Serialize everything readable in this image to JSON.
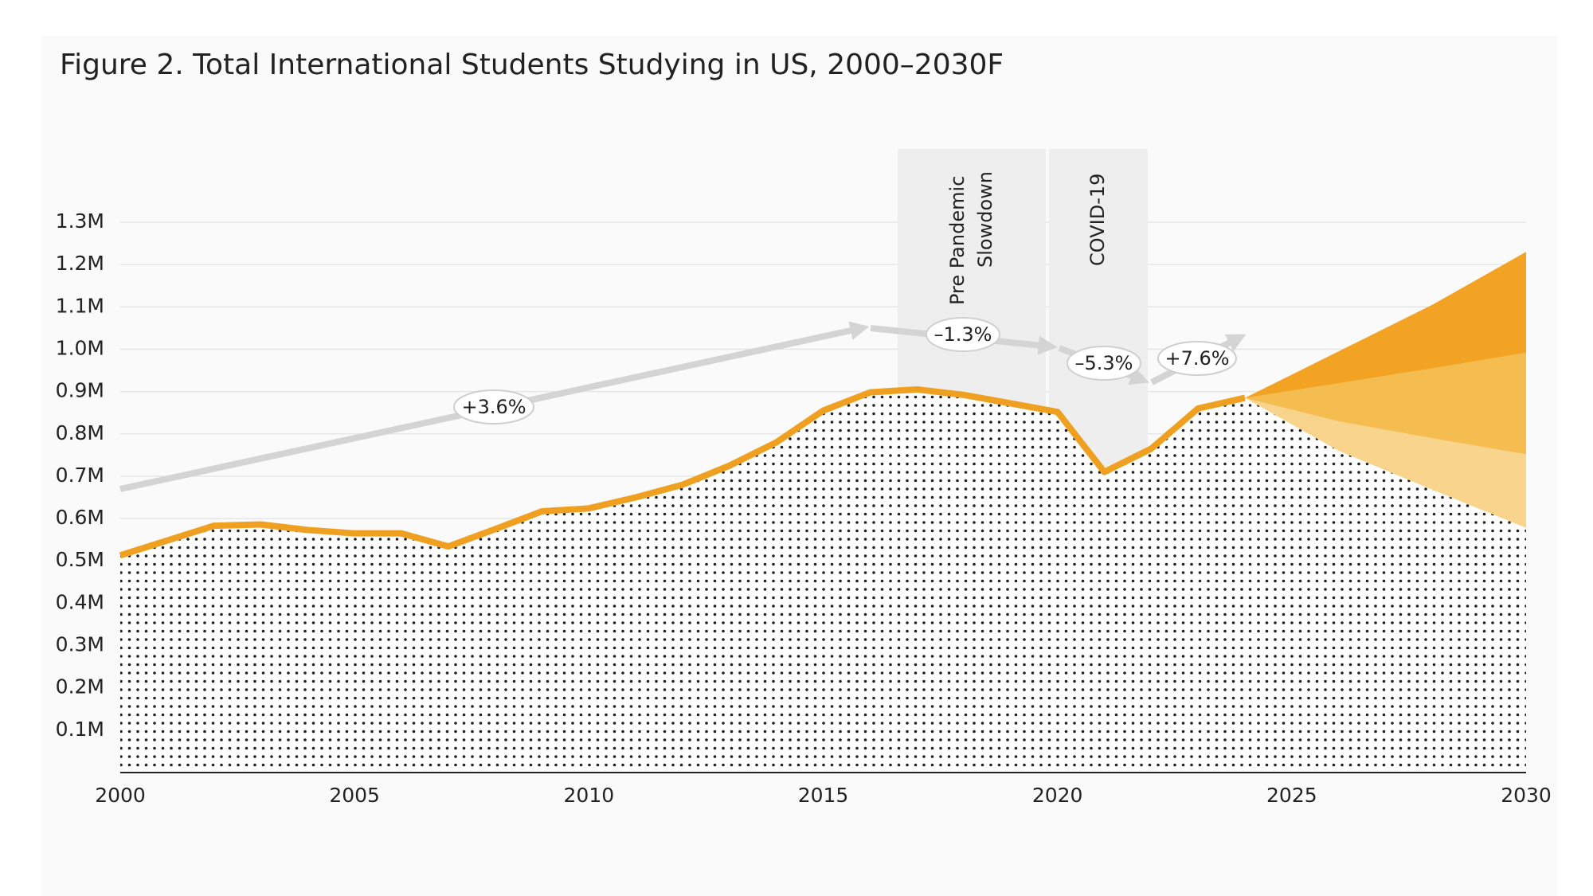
{
  "chart_data": {
    "type": "area",
    "title": "Figure 2. Total International Students Studying in US, 2000–2030F",
    "x": [
      2000,
      2001,
      2002,
      2003,
      2004,
      2005,
      2006,
      2007,
      2008,
      2009,
      2010,
      2011,
      2012,
      2013,
      2014,
      2015,
      2016,
      2017,
      2018,
      2019,
      2020,
      2021,
      2022,
      2023,
      2024
    ],
    "series": [
      {
        "color": "#f0a020",
        "values": [
          513000,
          548000,
          583000,
          586000,
          573000,
          565000,
          565000,
          534000,
          575000,
          617000,
          624000,
          650000,
          680000,
          725000,
          780000,
          855000,
          898000,
          905000,
          892000,
          872000,
          852000,
          710000,
          765000,
          860000,
          885000
        ]
      }
    ],
    "forecast": {
      "x": [
        2024,
        2026,
        2028,
        2030
      ],
      "bands": [
        {
          "color": "#f2a324",
          "values": [
            885000,
            995000,
            1105000,
            1230000
          ]
        },
        {
          "color": "#f5bc50",
          "values": [
            885000,
            920000,
            955000,
            992000
          ]
        },
        {
          "color": "#f8d48c",
          "values": [
            885000,
            830000,
            790000,
            752000
          ]
        },
        {
          "color": "#ffffff",
          "values": [
            885000,
            760000,
            668000,
            578000
          ]
        }
      ]
    },
    "xlim": [
      2000,
      2030
    ],
    "xticks": [
      2000,
      2005,
      2010,
      2015,
      2020,
      2025,
      2030
    ],
    "ylim": [
      0,
      1300000
    ],
    "yticks": [
      {
        "value": 100000,
        "label": "0.1M"
      },
      {
        "value": 200000,
        "label": "0.2M"
      },
      {
        "value": 300000,
        "label": "0.3M"
      },
      {
        "value": 400000,
        "label": "0.4M"
      },
      {
        "value": 500000,
        "label": "0.5M"
      },
      {
        "value": 600000,
        "label": "0.6M"
      },
      {
        "value": 700000,
        "label": "0.7M"
      },
      {
        "value": 800000,
        "label": "0.8M"
      },
      {
        "value": 900000,
        "label": "0.9M"
      },
      {
        "value": 1000000,
        "label": "1.0M"
      },
      {
        "value": 1100000,
        "label": "1.1M"
      },
      {
        "value": 1200000,
        "label": "1.2M"
      },
      {
        "value": 1300000,
        "label": "1.3M"
      }
    ],
    "grid": true,
    "periods": [
      {
        "label": [
          "Pre Pandemic",
          "Slowdown"
        ]
      },
      {
        "label": [
          "COVID-19"
        ]
      }
    ],
    "trends": [
      "+3.6%",
      "–1.3%",
      "–5.3%",
      "+7.6%"
    ]
  }
}
